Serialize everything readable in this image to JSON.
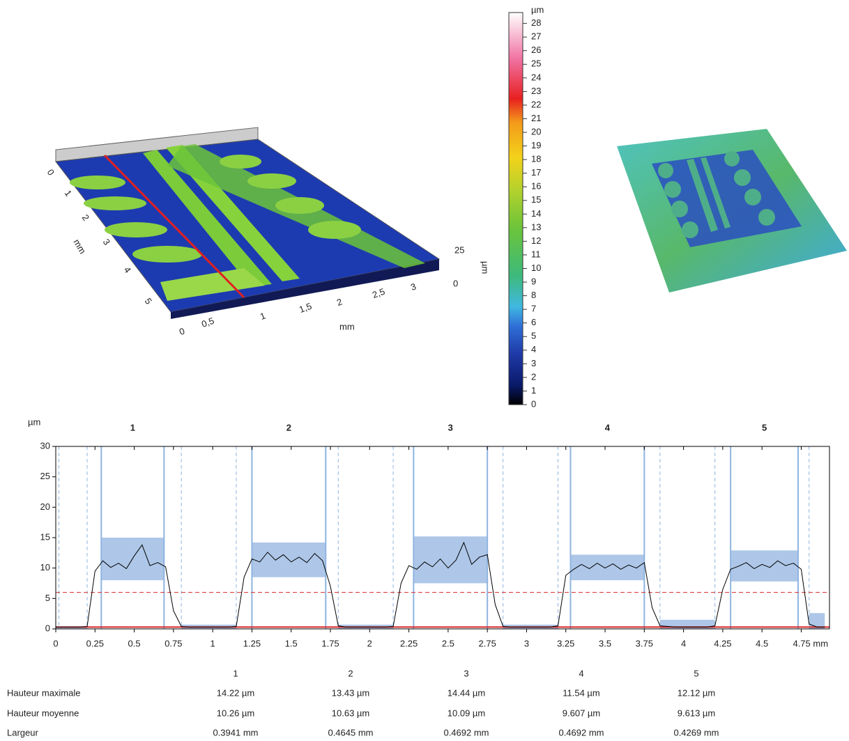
{
  "surface_3d": {
    "y_label": "mm",
    "y_ticks": [
      "0",
      "1",
      "2",
      "3",
      "4",
      "5"
    ],
    "x_label": "mm",
    "x_ticks": [
      "0",
      "0,5",
      "1",
      "1,5",
      "2",
      "2,5",
      "3"
    ],
    "z_label": "µm",
    "z_ticks": [
      "25",
      "0"
    ]
  },
  "colorbar": {
    "unit": "µm",
    "ticks": [
      0,
      1,
      2,
      3,
      4,
      5,
      6,
      7,
      8,
      9,
      10,
      11,
      12,
      13,
      14,
      15,
      16,
      17,
      18,
      19,
      20,
      21,
      22,
      23,
      24,
      25,
      26,
      27,
      28
    ],
    "range": [
      0,
      28.8
    ]
  },
  "chart_data": {
    "type": "line",
    "y_label": "µm",
    "xlim": [
      0,
      4.93
    ],
    "ylim": [
      0,
      30
    ],
    "xticks": [
      0,
      0.25,
      0.5,
      0.75,
      1,
      1.25,
      1.5,
      1.75,
      2,
      2.25,
      2.5,
      2.75,
      3,
      3.25,
      3.5,
      3.75,
      4,
      4.25,
      4.5,
      {
        "value": 4.75,
        "label": "4.75 mm"
      }
    ],
    "yticks": [
      0,
      5,
      10,
      15,
      20,
      25,
      30
    ],
    "x": [
      0,
      0.05,
      0.1,
      0.15,
      0.2,
      0.25,
      0.3,
      0.35,
      0.4,
      0.45,
      0.5,
      0.55,
      0.6,
      0.65,
      0.7,
      0.75,
      0.8,
      0.85,
      0.9,
      0.95,
      1,
      1.05,
      1.1,
      1.15,
      1.2,
      1.25,
      1.3,
      1.35,
      1.4,
      1.45,
      1.5,
      1.55,
      1.6,
      1.65,
      1.7,
      1.75,
      1.8,
      1.85,
      1.9,
      1.95,
      2,
      2.05,
      2.1,
      2.15,
      2.2,
      2.25,
      2.3,
      2.35,
      2.4,
      2.45,
      2.5,
      2.55,
      2.6,
      2.65,
      2.7,
      2.75,
      2.8,
      2.85,
      2.9,
      2.95,
      3,
      3.05,
      3.1,
      3.15,
      3.2,
      3.25,
      3.3,
      3.35,
      3.4,
      3.45,
      3.5,
      3.55,
      3.6,
      3.65,
      3.7,
      3.75,
      3.8,
      3.85,
      3.9,
      3.95,
      4,
      4.05,
      4.1,
      4.15,
      4.2,
      4.25,
      4.3,
      4.35,
      4.4,
      4.45,
      4.5,
      4.55,
      4.6,
      4.65,
      4.7,
      4.75,
      4.8,
      4.85,
      4.9
    ],
    "series": [
      {
        "color": "#000000",
        "values": [
          0.3,
          0.3,
          0.3,
          0.3,
          0.4,
          9.5,
          11.2,
          10.1,
          10.8,
          9.9,
          12.0,
          13.8,
          10.4,
          10.9,
          10.2,
          3.0,
          0.4,
          0.3,
          0.3,
          0.3,
          0.3,
          0.3,
          0.3,
          0.4,
          8.5,
          11.5,
          11.0,
          12.6,
          11.3,
          12.2,
          11.0,
          11.8,
          10.9,
          12.4,
          11.2,
          7.0,
          0.5,
          0.3,
          0.3,
          0.3,
          0.3,
          0.3,
          0.3,
          0.4,
          7.5,
          10.4,
          9.8,
          11.0,
          10.2,
          11.5,
          10.0,
          11.3,
          14.2,
          10.6,
          11.8,
          12.2,
          4.0,
          0.4,
          0.3,
          0.3,
          0.3,
          0.3,
          0.3,
          0.3,
          0.5,
          8.8,
          9.8,
          10.6,
          9.9,
          10.8,
          10.0,
          10.7,
          9.8,
          10.5,
          10.0,
          10.9,
          3.5,
          0.5,
          0.4,
          0.3,
          0.3,
          0.3,
          0.3,
          0.3,
          0.5,
          6.5,
          9.8,
          10.3,
          10.9,
          9.9,
          10.6,
          10.1,
          11.2,
          10.4,
          10.8,
          9.8,
          0.8,
          0.3,
          0.3
        ]
      }
    ],
    "region_color": "#aec7e8",
    "regions": [
      {
        "label": "1",
        "x": [
          0.29,
          0.69
        ],
        "y": [
          8,
          15
        ]
      },
      {
        "label": "2",
        "x": [
          1.25,
          1.72
        ],
        "y": [
          8.5,
          14.2
        ]
      },
      {
        "label": "3",
        "x": [
          2.28,
          2.75
        ],
        "y": [
          7.5,
          15.2
        ]
      },
      {
        "label": "4",
        "x": [
          3.28,
          3.75
        ],
        "y": [
          8,
          12.2
        ]
      },
      {
        "label": "5",
        "x": [
          4.3,
          4.73
        ],
        "y": [
          7.8,
          12.9
        ]
      }
    ],
    "baseline_regions": [
      {
        "x": [
          0,
          0.2
        ],
        "y": [
          0,
          0.4
        ]
      },
      {
        "x": [
          0.8,
          1.15
        ],
        "y": [
          0,
          0.7
        ]
      },
      {
        "x": [
          1.8,
          2.15
        ],
        "y": [
          0,
          0.7
        ]
      },
      {
        "x": [
          2.85,
          3.2
        ],
        "y": [
          0,
          0.7
        ]
      },
      {
        "x": [
          3.85,
          4.2
        ],
        "y": [
          0,
          1.5
        ]
      },
      {
        "x": [
          4.8,
          4.9
        ],
        "y": [
          0,
          2.6
        ]
      }
    ],
    "dashed_x": [
      0.02,
      0.2,
      0.8,
      1.15,
      1.8,
      2.15,
      2.85,
      3.2,
      3.85,
      4.2,
      4.8
    ],
    "thresholds": [
      {
        "value": 6,
        "color": "#d62728",
        "dashed": true
      },
      {
        "value": 0.3,
        "color": "#d62728",
        "dashed": false
      }
    ]
  },
  "table": {
    "header": [
      "1",
      "2",
      "3",
      "4",
      "5"
    ],
    "rows": [
      {
        "label": "Hauteur maximale",
        "cells": [
          "14.22 µm",
          "13.43 µm",
          "14.44 µm",
          "11.54 µm",
          "12.12 µm"
        ]
      },
      {
        "label": "Hauteur moyenne",
        "cells": [
          "10.26 µm",
          "10.63 µm",
          "10.09 µm",
          "9.607 µm",
          "9.613 µm"
        ]
      },
      {
        "label": "Largeur",
        "cells": [
          "0.3941 mm",
          "0.4645 mm",
          "0.4692 mm",
          "0.4692 mm",
          "0.4269 mm"
        ]
      }
    ]
  }
}
